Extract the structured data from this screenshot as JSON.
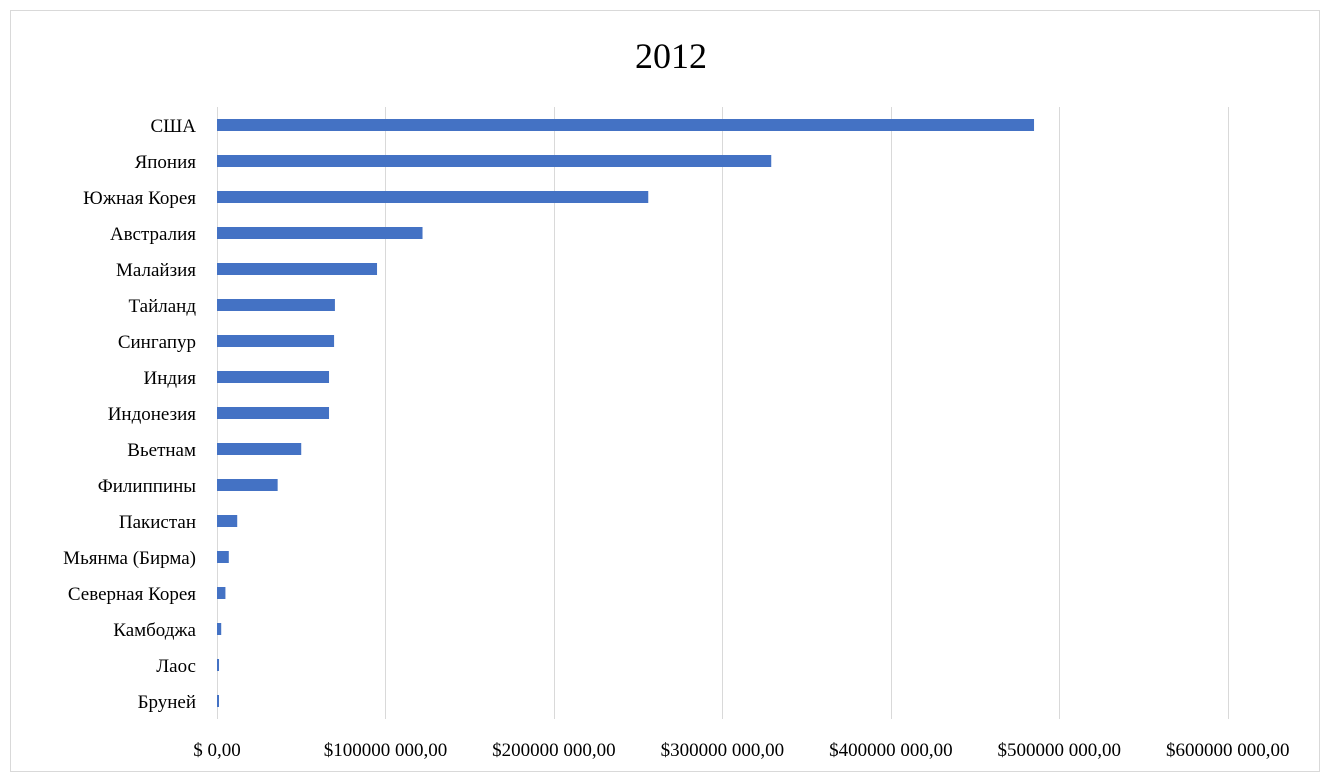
{
  "chart_data": {
    "type": "bar",
    "orientation": "horizontal",
    "title": "2012",
    "xlabel": "",
    "ylabel": "",
    "categories": [
      "США",
      "Япония",
      "Южная Корея",
      "Австралия",
      "Малайзия",
      "Тайланд",
      "Сингапур",
      "Индия",
      "Индонезия",
      "Вьетнам",
      "Филиппины",
      "Пакистан",
      "Мьянма (Бирма)",
      "Северная Корея",
      "Камбоджа",
      "Лаос",
      "Бруней"
    ],
    "values": [
      485000,
      329000,
      256000,
      122000,
      95000,
      70000,
      69500,
      66500,
      66500,
      50000,
      36000,
      12000,
      7000,
      5000,
      2500,
      1200,
      1000
    ],
    "xlim": [
      0,
      650000
    ],
    "xticks": [
      0,
      100000,
      200000,
      300000,
      400000,
      500000,
      600000
    ],
    "xtick_labels": [
      "$ 0,00",
      "$100000 000,00",
      "$200000 000,00",
      "$300000 000,00",
      "$400000 000,00",
      "$500000 000,00",
      "$600000 000,00"
    ],
    "grid": true,
    "legend": "none",
    "colors": {
      "bar": "#4472C4",
      "grid": "#d9d9d9"
    }
  }
}
